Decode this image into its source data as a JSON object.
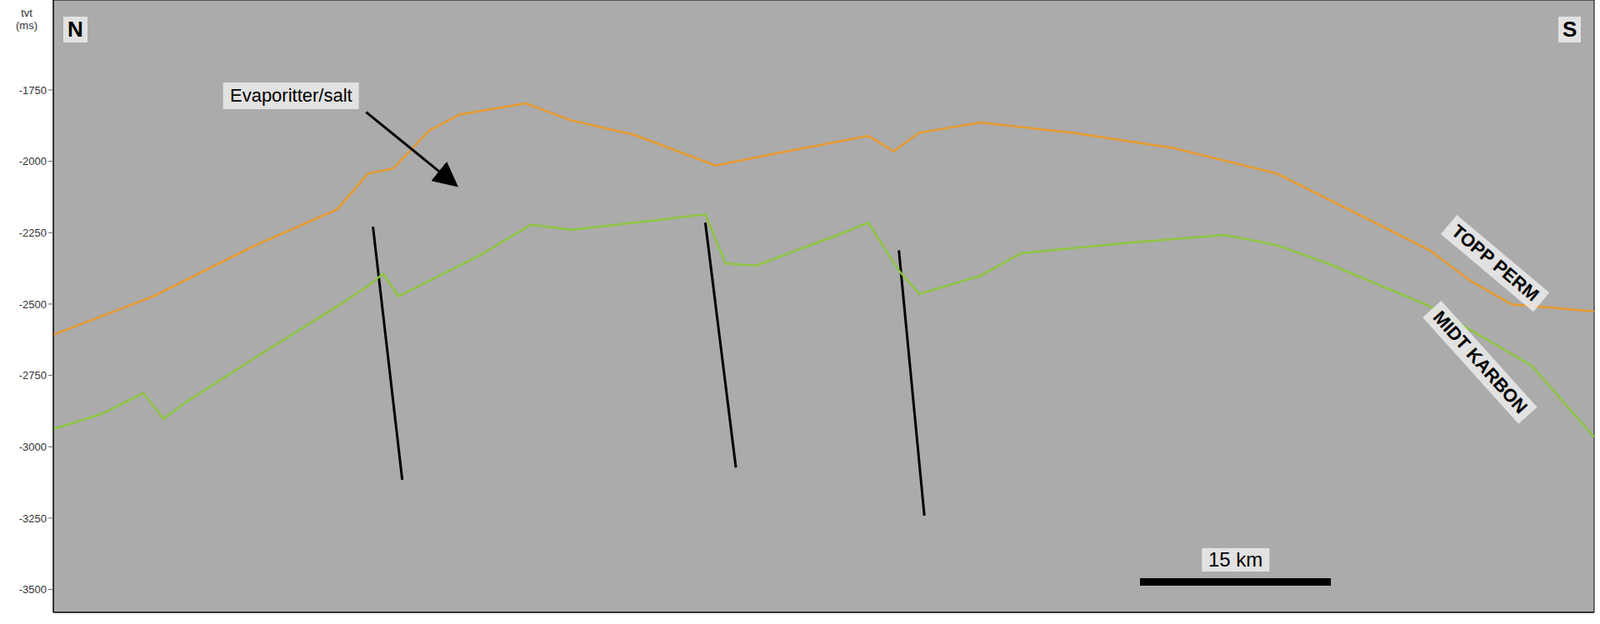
{
  "chart_data": {
    "type": "line",
    "y_label": "tvt (ms)",
    "corner_labels": {
      "left": "N",
      "right": "S"
    },
    "xlim": [
      0,
      121
    ],
    "ylim": [
      -3580,
      -1435
    ],
    "yticks": [
      -1750,
      -2000,
      -2250,
      -2500,
      -2750,
      -3000,
      -3250,
      -3500
    ],
    "tick_labels": "y",
    "series": [
      {
        "name": "TOPP PERM",
        "color": "#e89a2c",
        "x": [
          0,
          7.86,
          15.88,
          22.3,
          24.7,
          26.7,
          29.5,
          31.9,
          37.1,
          40.7,
          45.6,
          52.0,
          56.8,
          64.0,
          66.0,
          68.0,
          72.8,
          80.0,
          88.0,
          96.1,
          104.1,
          108.1,
          111.3,
          114.5,
          121
        ],
        "values": [
          -2608,
          -2473,
          -2294,
          -2168,
          -2043,
          -2025,
          -1893,
          -1836,
          -1797,
          -1857,
          -1907,
          -2015,
          -1972,
          -1911,
          -1965,
          -1900,
          -1864,
          -1900,
          -1954,
          -2043,
          -2222,
          -2312,
          -2419,
          -2501,
          -2526
        ]
      },
      {
        "name": "MIDT KARBON",
        "color": "#8cc63f",
        "x": [
          0,
          3.85,
          7.06,
          8.66,
          10.27,
          15.88,
          22.3,
          24.7,
          25.9,
          27.1,
          29.5,
          33.5,
          37.5,
          40.7,
          45.6,
          51.2,
          52.8,
          55.2,
          61.6,
          64.0,
          66.4,
          68.0,
          72.8,
          76.0,
          84.0,
          92.0,
          96.1,
          100.1,
          108.1,
          116.1,
          121
        ],
        "values": [
          -2938,
          -2884,
          -2812,
          -2902,
          -2848,
          -2687,
          -2508,
          -2437,
          -2394,
          -2473,
          -2419,
          -2329,
          -2222,
          -2240,
          -2215,
          -2186,
          -2358,
          -2365,
          -2258,
          -2215,
          -2383,
          -2465,
          -2401,
          -2322,
          -2287,
          -2258,
          -2294,
          -2358,
          -2508,
          -2716,
          -2966
        ]
      }
    ],
    "faults": [
      {
        "color": "#000000",
        "x": [
          25.1,
          27.4
        ],
        "values": [
          -2229,
          -3116
        ]
      },
      {
        "color": "#000000",
        "x": [
          51.2,
          53.6
        ],
        "values": [
          -2215,
          -3073
        ]
      },
      {
        "color": "#000000",
        "x": [
          66.4,
          68.4
        ],
        "values": [
          -2312,
          -3241
        ]
      }
    ],
    "annotations": [
      {
        "text": "Evaporitter/salt",
        "x": 31.5,
        "y": -2079
      }
    ],
    "scale_bar": {
      "length": 15,
      "label": "15 km"
    }
  }
}
